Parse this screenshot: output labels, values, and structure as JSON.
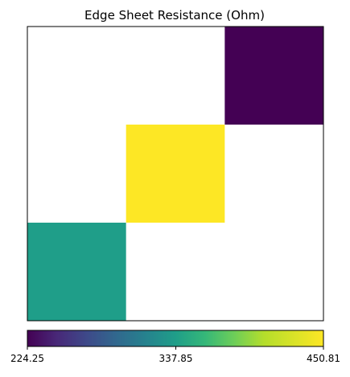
{
  "chart_data": {
    "type": "heatmap",
    "title": "Edge Sheet Resistance (Ohm)",
    "xlabel": "",
    "ylabel": "",
    "grid": false,
    "n_rows": 3,
    "n_cols": 3,
    "cells": [
      {
        "row": 0,
        "col": 2,
        "value": 224.25
      },
      {
        "row": 1,
        "col": 1,
        "value": 450.81
      },
      {
        "row": 2,
        "col": 0,
        "value": 337.85
      }
    ],
    "empty_cell_color": "#ffffff",
    "colorbar": {
      "orientation": "horizontal",
      "colormap": "viridis",
      "min": 224.25,
      "max": 450.81,
      "ticks": [
        224.25,
        337.85,
        450.81
      ],
      "tick_labels": [
        "224.25",
        "337.85",
        "450.81"
      ]
    }
  }
}
